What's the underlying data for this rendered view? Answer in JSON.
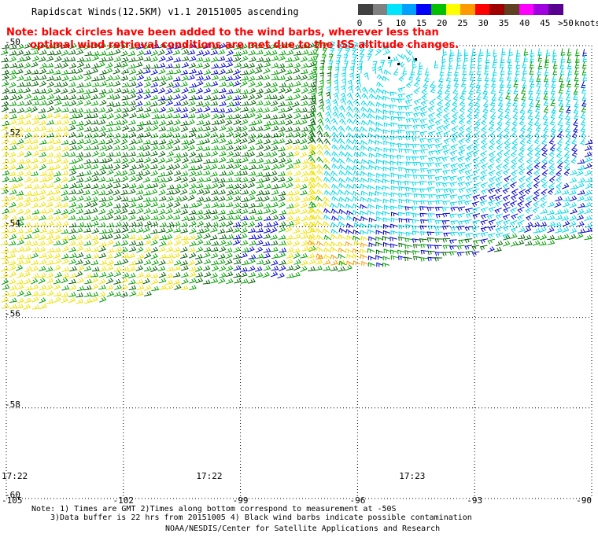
{
  "header": {
    "title": "Rapidscat Winds(12.5KM) v1.1 20151005 ascending",
    "note_line1": "Note: black circles have been added to the wind barbs, wherever less than",
    "note_line2": "optimal wind retrieval conditions are met due to the ISS altitude changes."
  },
  "colorbar": {
    "labels": [
      "0",
      "5",
      "10",
      "15",
      "20",
      "25",
      "30",
      "35",
      "40",
      "45",
      ">50"
    ],
    "units": "knots",
    "colors": [
      "#404040",
      "#808080",
      "#00e5ff",
      "#00a0ff",
      "#0000ff",
      "#00c000",
      "#ffff00",
      "#ff9900",
      "#ff0000",
      "#a00000",
      "#604020",
      "#ff00ff",
      "#a000e0",
      "#5a0090"
    ]
  },
  "map": {
    "lat_labels": [
      "-50",
      "-52",
      "-54",
      "-56",
      "-58",
      "-60"
    ],
    "lon_labels": [
      "-105",
      "-102",
      "-99",
      "-96",
      "-93",
      "-90"
    ],
    "time_labels": [
      "17:22",
      "17:22",
      "17:23"
    ],
    "lat_range": [
      -60,
      -50
    ],
    "lon_range": [
      -105,
      -90
    ],
    "barb_colors": {
      "cyan": "#00d8e8",
      "blue": "#0000cc",
      "green": "#00a000",
      "darkgreen": "#006000",
      "yellow": "#f0e000",
      "orange": "#ff9900"
    }
  },
  "footer": {
    "note_line1": "Note: 1) Times are GMT 2)Times along bottom correspond to measurement at -50S",
    "note_line2": "3)Data buffer is 22 hrs from 20151005 4) Black wind barbs indicate possible contamination",
    "credit": "NOAA/NESDIS/Center for Satellite Applications and Research"
  }
}
